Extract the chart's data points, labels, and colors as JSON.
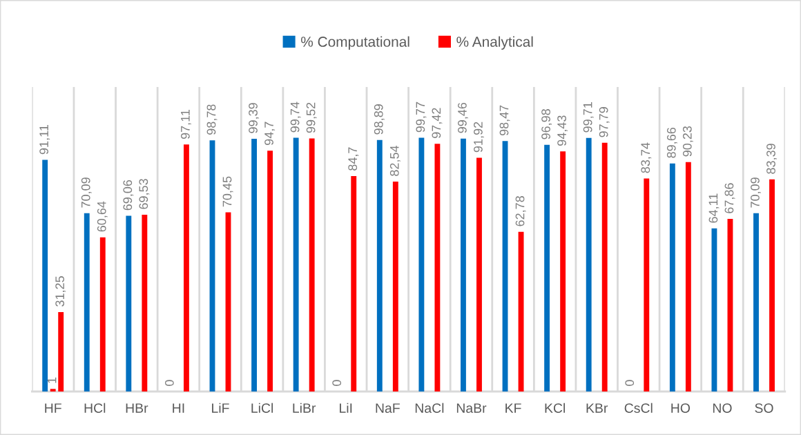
{
  "chart_data": {
    "type": "bar",
    "categories": [
      "HF",
      "HCl",
      "HBr",
      "HI",
      "LiF",
      "LiCl",
      "LiBr",
      "LiI",
      "NaF",
      "NaCl",
      "NaBr",
      "KF",
      "KCl",
      "KBr",
      "CsCl",
      "HO",
      "NO",
      "SO"
    ],
    "series": [
      {
        "name": "% Computational",
        "color": "#0070c0",
        "values": [
          91.11,
          70.09,
          69.06,
          0,
          98.78,
          99.39,
          99.74,
          0,
          98.89,
          99.77,
          99.46,
          98.47,
          96.98,
          99.71,
          0,
          89.66,
          64.11,
          70.09
        ],
        "value_labels": [
          "91,11",
          "70,09",
          "69,06",
          "0",
          "98,78",
          "99,39",
          "99,74",
          "0",
          "98,89",
          "99,77",
          "99,46",
          "98,47",
          "96,98",
          "99,71",
          "0",
          "89,66",
          "64,11",
          "70,09"
        ]
      },
      {
        "color": "#ff0000",
        "values": [
          1,
          null,
          null,
          null,
          null,
          null,
          null,
          null,
          null,
          null,
          null,
          null,
          null,
          null,
          null,
          null,
          null,
          null
        ],
        "value_labels": [
          "1",
          null,
          null,
          null,
          null,
          null,
          null,
          null,
          null,
          null,
          null,
          null,
          null,
          null,
          null,
          null,
          null,
          null
        ]
      },
      {
        "name": "% Analytical",
        "color": "#ff0000",
        "values": [
          31.25,
          60.64,
          69.53,
          97.11,
          70.45,
          94.7,
          99.52,
          84.7,
          82.54,
          97.42,
          91.92,
          62.78,
          94.43,
          97.79,
          83.74,
          90.23,
          67.86,
          83.39
        ],
        "value_labels": [
          "31,25",
          "60,64",
          "69,53",
          "97,11",
          "70,45",
          "94,7",
          "99,52",
          "84,7",
          "82,54",
          "97,42",
          "91,92",
          "62,78",
          "94,43",
          "97,79",
          "83,74",
          "90,23",
          "67,86",
          "83,39"
        ]
      }
    ],
    "legend": "top",
    "grid": "x"
  }
}
